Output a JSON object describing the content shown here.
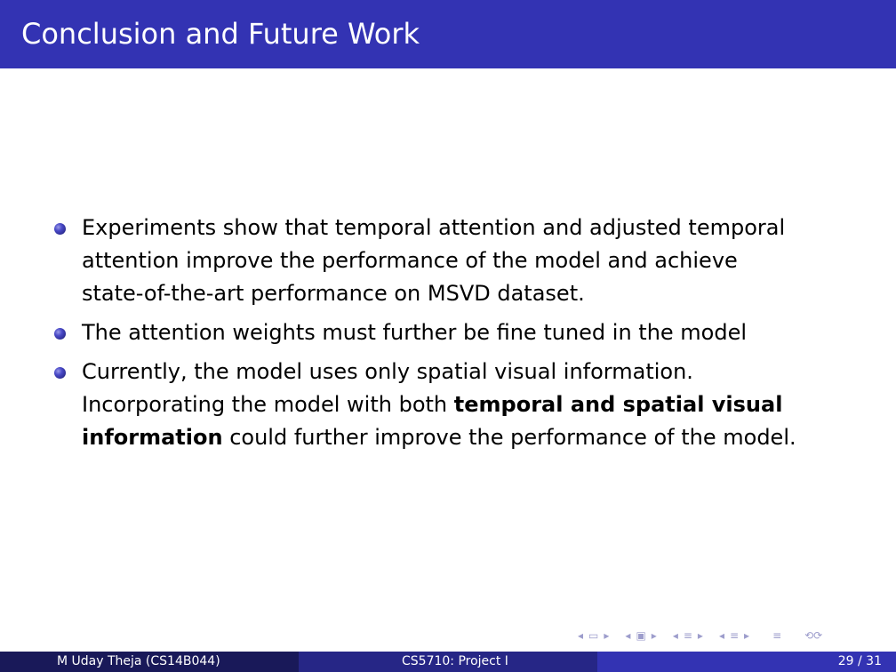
{
  "slide": {
    "title": "Conclusion and Future Work",
    "bullets": [
      {
        "text": "Experiments show that temporal attention and adjusted temporal\nattention improve the performance of the model and achieve\nstate-of-the-art performance on MSVD dataset."
      },
      {
        "text": "The attention weights must further be fine tuned in the model"
      },
      {
        "pre": "Currently, the model uses only spatial visual information.\nIncorporating the model with both ",
        "bold": "temporal and spatial visual\ninformation",
        "post": " could further improve the performance of the model."
      }
    ]
  },
  "footer": {
    "author": "M Uday Theja  (CS14B044)",
    "course": "CS5710: Project I",
    "page": "29 / 31"
  },
  "nav_icons": [
    "frame-prev-icon",
    "frame-next-icon",
    "subsection-prev-icon",
    "subsection-next-icon",
    "section-prev-icon",
    "section-next-icon",
    "align-icon",
    "search-icon"
  ],
  "colors": {
    "title_bar": "#3333b3",
    "footer_left": "#191959",
    "footer_mid": "#262686",
    "footer_right": "#3333b3"
  }
}
